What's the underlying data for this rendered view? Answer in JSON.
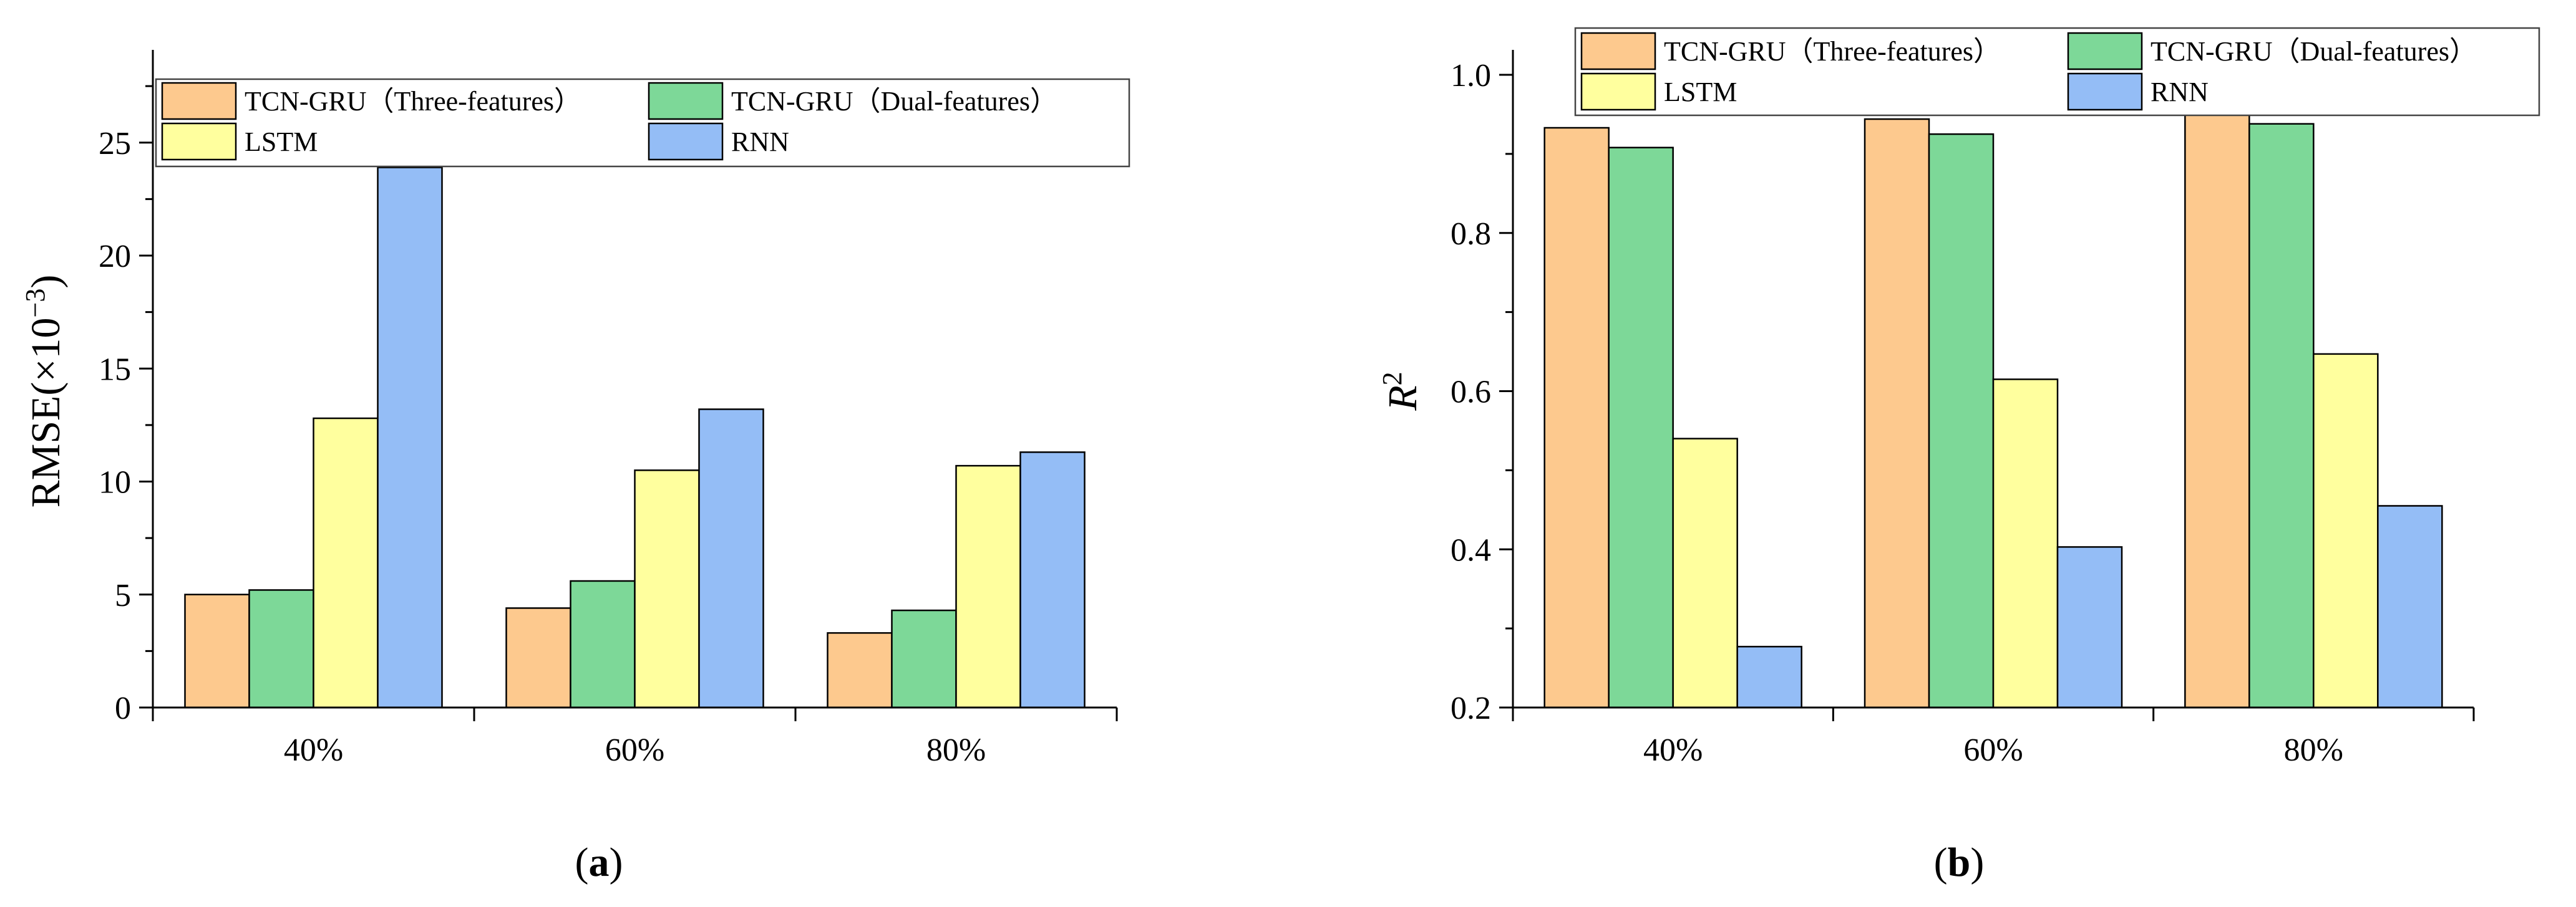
{
  "chart_data": [
    {
      "type": "bar",
      "panel_label": "(a)",
      "categories": [
        "40%",
        "60%",
        "80%"
      ],
      "ylabel": "RMSE(×10",
      "ylabel_exp": "−3",
      "ylabel_close": ")",
      "ylim": [
        0,
        28
      ],
      "yticks": [
        0,
        5,
        10,
        15,
        20,
        25
      ],
      "series": [
        {
          "name": "TCN-GRU（Three-features）",
          "color": "#FDC98E",
          "values": [
            5.0,
            4.4,
            3.3
          ]
        },
        {
          "name": "TCN-GRU（Dual-features）",
          "color": "#7DD898",
          "values": [
            5.2,
            5.6,
            4.3
          ]
        },
        {
          "name": "LSTM",
          "color": "#FFFF9E",
          "values": [
            12.8,
            10.5,
            10.7
          ]
        },
        {
          "name": "RNN",
          "color": "#94BDF6",
          "values": [
            23.9,
            13.2,
            11.3
          ]
        }
      ],
      "legend": "top"
    },
    {
      "type": "bar",
      "panel_label": "(b)",
      "categories": [
        "40%",
        "60%",
        "80%"
      ],
      "ylabel": "R",
      "ylabel_exp": "2",
      "ylim": [
        0.2,
        1.0
      ],
      "yticks": [
        0.2,
        0.4,
        0.6,
        0.8,
        1.0
      ],
      "yticklabels": [
        "0.2",
        "0.4",
        "0.6",
        "0.8",
        "1.0"
      ],
      "series": [
        {
          "name": "TCN-GRU（Three-features）",
          "color": "#FDC98E",
          "values": [
            0.933,
            0.944,
            0.965
          ]
        },
        {
          "name": "TCN-GRU（Dual-features）",
          "color": "#7DD898",
          "values": [
            0.908,
            0.925,
            0.938
          ]
        },
        {
          "name": "LSTM",
          "color": "#FFFF9E",
          "values": [
            0.54,
            0.615,
            0.647
          ]
        },
        {
          "name": "RNN",
          "color": "#94BDF6",
          "values": [
            0.277,
            0.403,
            0.455
          ]
        }
      ],
      "legend": "top"
    }
  ]
}
